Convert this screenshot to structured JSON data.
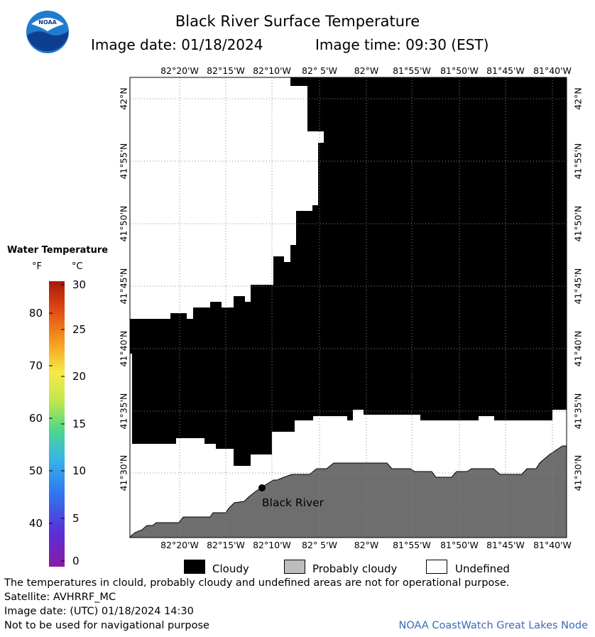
{
  "header": {
    "title": "Black River Surface Temperature",
    "image_date_label": "Image date: 01/18/2024",
    "image_time_label": "Image time: 09:30 (EST)",
    "logo_text": "NOAA"
  },
  "map": {
    "lon_labels": [
      "82°20'W",
      "82°15'W",
      "82°10'W",
      "82° 5'W",
      "82°W",
      "81°55'W",
      "81°50'W",
      "81°45'W",
      "81°40'W"
    ],
    "lat_labels": [
      "42°N",
      "41°55'N",
      "41°50'N",
      "41°45'N",
      "41°40'N",
      "41°35'N",
      "41°30'N"
    ],
    "place_label": "Black River",
    "colors": {
      "cloudy": "#000000",
      "probably_cloudy": "#6e6e6e",
      "undefined": "#ffffff",
      "grid": "#888888"
    }
  },
  "legend": {
    "title": "Water Temperature",
    "unit_f": "°F",
    "unit_c": "°C",
    "fahrenheit_ticks": [
      "80",
      "70",
      "60",
      "50",
      "40"
    ],
    "celsius_ticks": [
      "30",
      "25",
      "20",
      "15",
      "10",
      "5",
      "0"
    ]
  },
  "key": {
    "cloudy": "Cloudy",
    "probably_cloudy": "Probably cloudy",
    "undefined": "Undefined"
  },
  "footer": {
    "disclaimer": "The temperatures in clould, probably cloudy and undefined areas are not for operational purpose.",
    "satellite": "Satellite: AVHRRF_MC",
    "utc_date": "Image date: (UTC) 01/18/2024  14:30",
    "nav_warning": "Not to be used for navigational purpose",
    "credit": "NOAA CoastWatch Great Lakes Node"
  }
}
